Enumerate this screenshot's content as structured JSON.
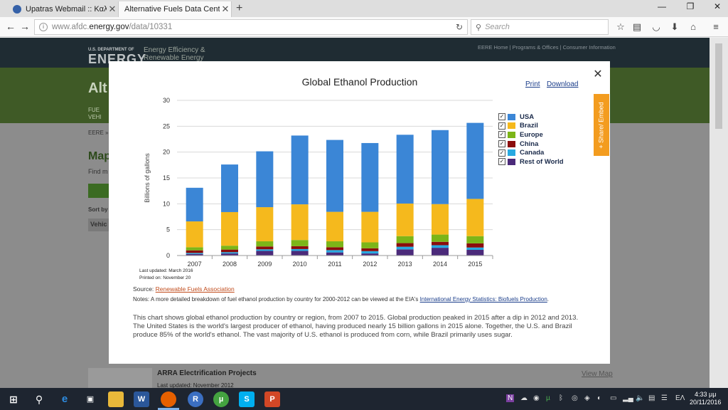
{
  "browser": {
    "tabs": [
      {
        "title": "Upatras Webmail :: Καλώς..."
      },
      {
        "title": "Alternative Fuels Data Center..."
      }
    ],
    "url_prefix": "www.afdc.",
    "url_domain": "energy.gov",
    "url_path": "/data/10331",
    "search_placeholder": "Search"
  },
  "page": {
    "brand_small": "U.S. DEPARTMENT OF",
    "brand": "ENERGY",
    "eere_line1": "Energy Efficiency &",
    "eere_line2": "Renewable Energy",
    "top_links": "EERE Home | Programs & Offices | Consumer Information",
    "alt_title": "Alt",
    "side_texts": [
      "FUE",
      "VEHI",
      "EERE »",
      "Map",
      "Find m",
      "Sort by",
      "Vehic"
    ],
    "arra_title": "ARRA Electrification Projects",
    "arra_date": "Last updated: November 2012",
    "view_map": "View Map"
  },
  "modal": {
    "print_label": "Print",
    "download_label": "Download",
    "share_label": "+ Share/ Embed",
    "last_updated": "Last updated: March 2016",
    "printed_on": "Printed on: November 20",
    "source_prefix": "Source:",
    "source_link": "Renewable Fuels Association",
    "notes_prefix": "Notes: A more detailed breakdown of fuel ethanol production by country for 2000-2012 can be viewed at the EIA's",
    "notes_link": "International Energy Statistics: Biofuels Production",
    "notes_suffix": ".",
    "description": "This chart shows global ethanol production by country or region, from 2007 to 2015. Global production peaked in 2015 after a dip in 2012 and 2013. The United States is the world's largest producer of ethanol, having produced nearly 15 billion gallons in 2015 alone. Together, the U.S. and Brazil produce 85% of the world's ethanol. The vast majority of U.S. ethanol is produced from corn, while Brazil primarily uses sugar."
  },
  "chart_data": {
    "type": "bar",
    "stacked": true,
    "title": "Global Ethanol Production",
    "xlabel": "",
    "ylabel": "Billions of gallons",
    "ylim": [
      0,
      30
    ],
    "yticks": [
      0,
      5,
      10,
      15,
      20,
      25,
      30
    ],
    "grid": true,
    "legend_position": "right",
    "categories": [
      "2007",
      "2008",
      "2009",
      "2010",
      "2011",
      "2012",
      "2013",
      "2014",
      "2015"
    ],
    "series": [
      {
        "name": "Rest of World",
        "color": "#4b2a7a",
        "values": [
          0.3,
          0.4,
          0.9,
          0.9,
          0.6,
          0.4,
          1.2,
          1.5,
          1.1
        ]
      },
      {
        "name": "Canada",
        "color": "#27a9e1",
        "values": [
          0.2,
          0.25,
          0.3,
          0.35,
          0.45,
          0.45,
          0.5,
          0.5,
          0.45
        ]
      },
      {
        "name": "China",
        "color": "#8b0d0d",
        "values": [
          0.5,
          0.5,
          0.55,
          0.55,
          0.55,
          0.55,
          0.7,
          0.65,
          0.8
        ]
      },
      {
        "name": "Europe",
        "color": "#7cb518",
        "values": [
          0.6,
          0.75,
          1.0,
          1.2,
          1.15,
          1.15,
          1.35,
          1.4,
          1.4
        ]
      },
      {
        "name": "Brazil",
        "color": "#f5b91d",
        "values": [
          5.0,
          6.5,
          6.6,
          6.9,
          5.7,
          5.9,
          6.3,
          5.9,
          7.2
        ]
      },
      {
        "name": "USA",
        "color": "#3b86d6",
        "values": [
          6.5,
          9.2,
          10.8,
          13.3,
          13.9,
          13.3,
          13.3,
          14.3,
          14.7
        ]
      }
    ],
    "legend_order": [
      "USA",
      "Brazil",
      "Europe",
      "China",
      "Canada",
      "Rest of World"
    ]
  },
  "taskbar": {
    "tray_lang": "ΕΛ",
    "time": "4:33 μμ",
    "date": "20/11/2016"
  }
}
